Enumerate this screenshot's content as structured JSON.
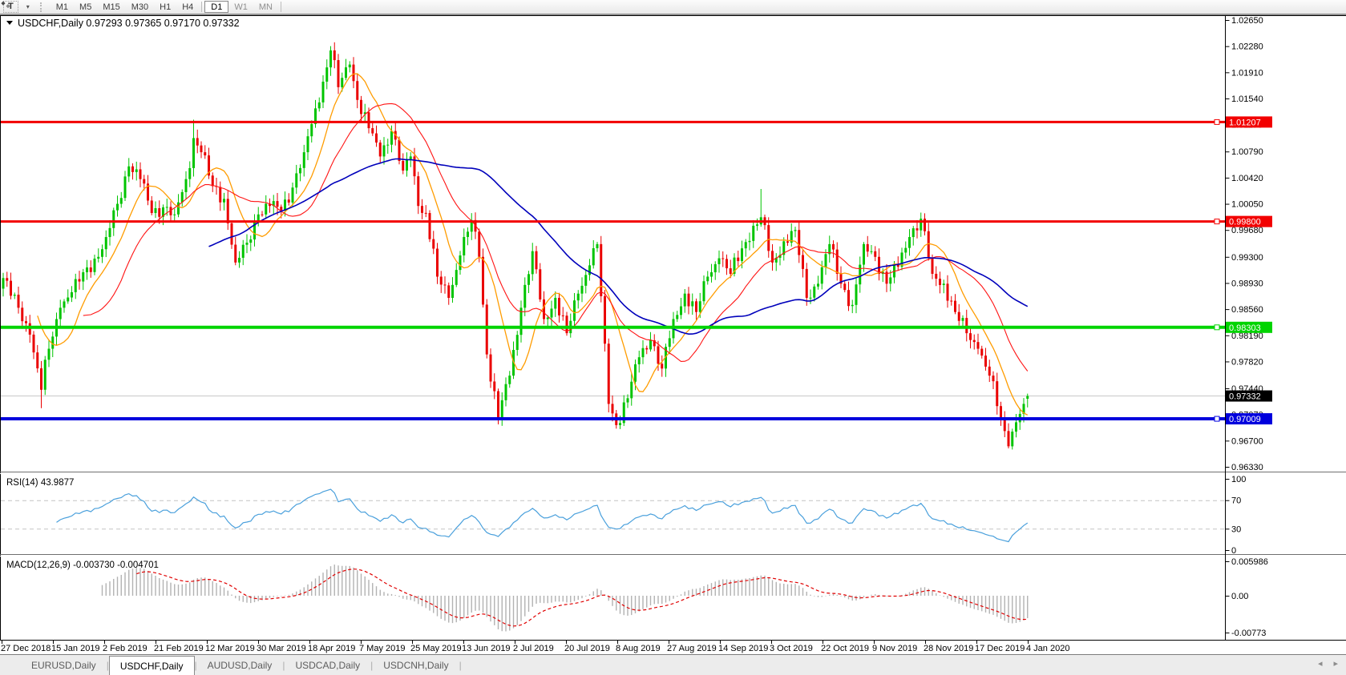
{
  "toolbar": {
    "text_tool_label": "T",
    "arrow_tool_icon": "diamond-arrows",
    "dropdown_glyph": "▾",
    "timeframes": [
      {
        "label": "M1",
        "active": false,
        "dim": false
      },
      {
        "label": "M5",
        "active": false,
        "dim": false
      },
      {
        "label": "M15",
        "active": false,
        "dim": false
      },
      {
        "label": "M30",
        "active": false,
        "dim": false
      },
      {
        "label": "H1",
        "active": false,
        "dim": false
      },
      {
        "label": "H4",
        "active": false,
        "dim": false
      },
      {
        "label": "D1",
        "active": true,
        "dim": false
      },
      {
        "label": "W1",
        "active": false,
        "dim": true
      },
      {
        "label": "MN",
        "active": false,
        "dim": true
      }
    ]
  },
  "tabs": {
    "items": [
      {
        "label": "EURUSD,Daily",
        "active": false
      },
      {
        "label": "USDCHF,Daily",
        "active": true
      },
      {
        "label": "AUDUSD,Daily",
        "active": false
      },
      {
        "label": "USDCAD,Daily",
        "active": false
      },
      {
        "label": "USDCNH,Daily",
        "active": false
      }
    ],
    "scroll_left_glyph": "◂",
    "scroll_right_glyph": "▸"
  },
  "chart_data": {
    "type": "candlestick",
    "title": "USDCHF,Daily  0.97293 0.97365 0.97170 0.97332",
    "symbol": "USDCHF",
    "timeframe": "Daily",
    "ohlc": {
      "open": "0.97293",
      "high": "0.97365",
      "low": "0.97170",
      "close": "0.97332"
    },
    "y_axis": {
      "min": 0.9633,
      "max": 1.0265,
      "ticks": [
        "1.02650",
        "1.02280",
        "1.01910",
        "1.01540",
        "1.01170",
        "1.00790",
        "1.00420",
        "1.00050",
        "0.99680",
        "0.99300",
        "0.98930",
        "0.98560",
        "0.98190",
        "0.97820",
        "0.97440",
        "0.97070",
        "0.96700",
        "0.96330"
      ]
    },
    "x_axis": {
      "date_labels": [
        "27 Dec 2018",
        "15 Jan 2019",
        "2 Feb 2019",
        "21 Feb 2019",
        "12 Mar 2019",
        "30 Mar 2019",
        "18 Apr 2019",
        "7 May 2019",
        "25 May 2019",
        "13 Jun 2019",
        "2 Jul 2019",
        "20 Jul 2019",
        "8 Aug 2019",
        "27 Aug 2019",
        "14 Sep 2019",
        "3 Oct 2019",
        "22 Oct 2019",
        "9 Nov 2019",
        "28 Nov 2019",
        "17 Dec 2019",
        "4 Jan 2020"
      ]
    },
    "horizontal_lines": [
      {
        "price": 1.01207,
        "label": "1.01207",
        "color": "#f20000",
        "width": 3
      },
      {
        "price": 0.998,
        "label": "0.99800",
        "color": "#f20000",
        "width": 3
      },
      {
        "price": 0.98303,
        "label": "0.98303",
        "color": "#00d400",
        "width": 4
      },
      {
        "price": 0.97009,
        "label": "0.97009",
        "color": "#0000dd",
        "width": 4
      }
    ],
    "bid": {
      "price": 0.97332,
      "label": "0.97332",
      "line_color": "#c8c8c8",
      "box_color": "#000000"
    },
    "candles": {
      "count": 270,
      "up_color": "#00c400",
      "down_color": "#ea0000",
      "close_anchors": [
        [
          0,
          0.99
        ],
        [
          4,
          0.9858
        ],
        [
          7,
          0.982
        ],
        [
          10,
          0.9742
        ],
        [
          12,
          0.98
        ],
        [
          15,
          0.9858
        ],
        [
          18,
          0.988
        ],
        [
          22,
          0.9915
        ],
        [
          25,
          0.993
        ],
        [
          27,
          0.9958
        ],
        [
          30,
          1.0005
        ],
        [
          33,
          1.0058
        ],
        [
          36,
          1.004
        ],
        [
          39,
          0.9992
        ],
        [
          42,
          1.0
        ],
        [
          45,
          0.999
        ],
        [
          48,
          1.004
        ],
        [
          50,
          1.0098
        ],
        [
          52,
          1.0078
        ],
        [
          55,
          1.003
        ],
        [
          58,
          1.0012
        ],
        [
          61,
          0.9922
        ],
        [
          64,
          0.995
        ],
        [
          67,
          0.999
        ],
        [
          70,
          1.0002
        ],
        [
          73,
          0.9995
        ],
        [
          76,
          1.0028
        ],
        [
          79,
          1.0078
        ],
        [
          82,
          1.014
        ],
        [
          85,
          1.0198
        ],
        [
          86,
          1.0222
        ],
        [
          88,
          1.017
        ],
        [
          91,
          1.0202
        ],
        [
          93,
          1.0152
        ],
        [
          96,
          1.0112
        ],
        [
          99,
          1.0072
        ],
        [
          102,
          1.0108
        ],
        [
          105,
          1.0052
        ],
        [
          107,
          1.0072
        ],
        [
          109,
          1.0002
        ],
        [
          111,
          0.9992
        ],
        [
          114,
          0.9902
        ],
        [
          117,
          0.9872
        ],
        [
          120,
          0.9932
        ],
        [
          123,
          0.9982
        ],
        [
          125,
          0.993
        ],
        [
          127,
          0.9792
        ],
        [
          130,
          0.9702
        ],
        [
          133,
          0.9762
        ],
        [
          136,
          0.9858
        ],
        [
          139,
          0.9938
        ],
        [
          142,
          0.9842
        ],
        [
          145,
          0.9872
        ],
        [
          148,
          0.9822
        ],
        [
          151,
          0.9878
        ],
        [
          154,
          0.9918
        ],
        [
          156,
          0.9948
        ],
        [
          159,
          0.9722
        ],
        [
          161,
          0.9692
        ],
        [
          164,
          0.973
        ],
        [
          167,
          0.9788
        ],
        [
          170,
          0.9812
        ],
        [
          173,
          0.9772
        ],
        [
          176,
          0.9842
        ],
        [
          179,
          0.9878
        ],
        [
          182,
          0.9852
        ],
        [
          185,
          0.9902
        ],
        [
          188,
          0.9928
        ],
        [
          191,
          0.9906
        ],
        [
          194,
          0.9942
        ],
        [
          197,
          0.9974
        ],
        [
          199,
          0.9986
        ],
        [
          202,
          0.9922
        ],
        [
          205,
          0.9952
        ],
        [
          208,
          0.9968
        ],
        [
          211,
          0.9872
        ],
        [
          214,
          0.9892
        ],
        [
          217,
          0.9948
        ],
        [
          220,
          0.9892
        ],
        [
          223,
          0.9862
        ],
        [
          226,
          0.9948
        ],
        [
          229,
          0.993
        ],
        [
          232,
          0.9892
        ],
        [
          235,
          0.9916
        ],
        [
          238,
          0.9958
        ],
        [
          241,
          0.9984
        ],
        [
          244,
          0.9906
        ],
        [
          247,
          0.9892
        ],
        [
          250,
          0.9852
        ],
        [
          253,
          0.9822
        ],
        [
          256,
          0.98
        ],
        [
          259,
          0.9762
        ],
        [
          262,
          0.9702
        ],
        [
          264,
          0.9662
        ],
        [
          266,
          0.9696
        ],
        [
          268,
          0.9722
        ],
        [
          269,
          0.97332
        ]
      ],
      "overrides": {
        "10": {
          "l": 0.9716
        },
        "50": {
          "h": 1.0124
        },
        "86": {
          "h": 1.0228
        },
        "130": {
          "l": 0.9693
        },
        "161": {
          "l": 0.9687
        },
        "199": {
          "h": 1.0026
        },
        "264": {
          "l": 0.9659
        },
        "269": {
          "o": 0.97293,
          "h": 0.97365,
          "l": 0.9717,
          "c": 0.97332
        }
      }
    },
    "moving_averages": [
      {
        "period": 10,
        "color": "#ff9c00",
        "width": 1.3
      },
      {
        "period": 22,
        "color": "#ff1414",
        "width": 1.1
      },
      {
        "period": 55,
        "color": "#0000bb",
        "width": 1.6
      }
    ],
    "rsi": {
      "label": "RSI(14) 43.9877",
      "period": 14,
      "value": 43.9877,
      "color": "#4aa0dc",
      "levels": [
        70,
        30
      ],
      "ticks": [
        "100",
        "70",
        "30",
        "0"
      ],
      "range": [
        0,
        100
      ]
    },
    "macd": {
      "label": "MACD(12,26,9) -0.003730 -0.004701",
      "fast": 12,
      "slow": 26,
      "signal": 9,
      "macd_value": -0.00373,
      "signal_value": -0.004701,
      "axis_ticks": [
        "0.005986",
        "0.00",
        "-0.00773"
      ],
      "axis_max": 0.005986,
      "axis_min": -0.00773,
      "histogram_color": "#b2b2b2",
      "signal_color": "#e00000"
    }
  }
}
